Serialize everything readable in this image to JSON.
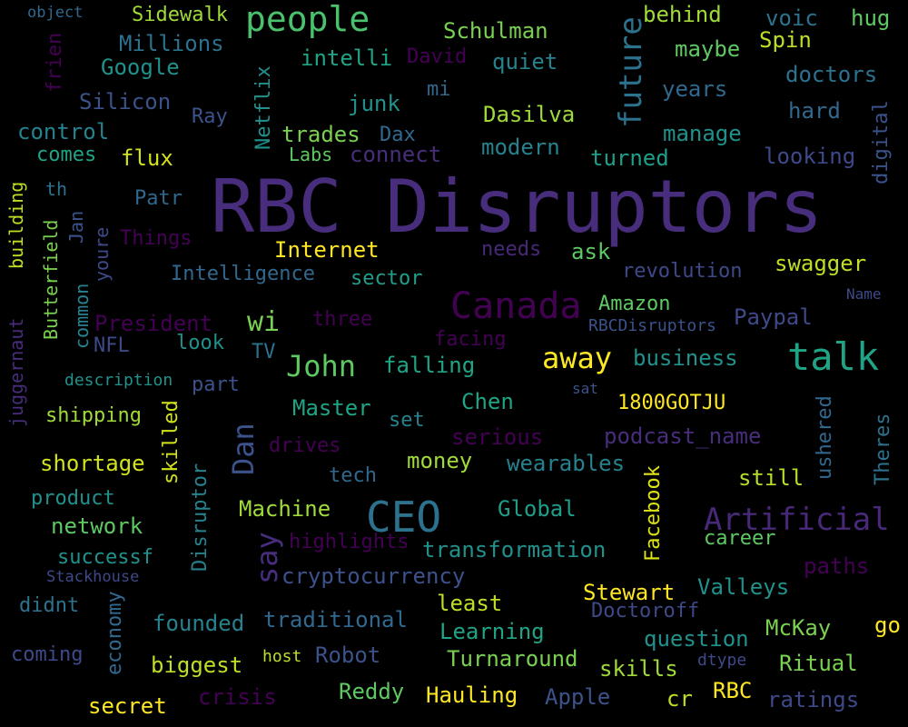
{
  "background": "#000000",
  "words": [
    {
      "text": "RBC Disruptors",
      "color": "#472d7b"
    },
    {
      "text": "people",
      "color": "#4ac16d"
    },
    {
      "text": "CEO",
      "color": "#2c728e"
    },
    {
      "text": "talk",
      "color": "#20a486"
    },
    {
      "text": "Canada",
      "color": "#440154"
    },
    {
      "text": "Artificial",
      "color": "#482878"
    },
    {
      "text": "future",
      "color": "#2c728e"
    },
    {
      "text": "away",
      "color": "#fde725"
    },
    {
      "text": "John",
      "color": "#5ec962"
    },
    {
      "text": "Dan",
      "color": "#3b528b"
    },
    {
      "text": "say",
      "color": "#472d7b"
    },
    {
      "text": "wi",
      "color": "#7ad151"
    },
    {
      "text": "object",
      "color": "#31688e"
    },
    {
      "text": "Sidewalk",
      "color": "#a0da39"
    },
    {
      "text": "behind",
      "color": "#a0da39"
    },
    {
      "text": "voic",
      "color": "#2c728e"
    },
    {
      "text": "hug",
      "color": "#5ec962"
    },
    {
      "text": "Millions",
      "color": "#2c728e"
    },
    {
      "text": "Google",
      "color": "#21918c"
    },
    {
      "text": "intelli",
      "color": "#20a486"
    },
    {
      "text": "David",
      "color": "#440154"
    },
    {
      "text": "Schulman",
      "color": "#7ad151"
    },
    {
      "text": "maybe",
      "color": "#5ec962"
    },
    {
      "text": "Spin",
      "color": "#bddf26"
    },
    {
      "text": "quiet",
      "color": "#26828e"
    },
    {
      "text": "doctors",
      "color": "#2c728e"
    },
    {
      "text": "frien",
      "color": "#440154"
    },
    {
      "text": "Silicon",
      "color": "#3b528b"
    },
    {
      "text": "mi",
      "color": "#31688e"
    },
    {
      "text": "years",
      "color": "#31688e"
    },
    {
      "text": "Ray",
      "color": "#3b528b"
    },
    {
      "text": "junk",
      "color": "#21918c"
    },
    {
      "text": "hard",
      "color": "#31688e"
    },
    {
      "text": "Netflix",
      "color": "#21918c"
    },
    {
      "text": "control",
      "color": "#26828e"
    },
    {
      "text": "trades",
      "color": "#7ad151"
    },
    {
      "text": "Dax",
      "color": "#31688e"
    },
    {
      "text": "Dasilva",
      "color": "#a0da39"
    },
    {
      "text": "manage",
      "color": "#21918c"
    },
    {
      "text": "digital",
      "color": "#3b528b"
    },
    {
      "text": "comes",
      "color": "#20a486"
    },
    {
      "text": "flux",
      "color": "#d2e21b"
    },
    {
      "text": "Labs",
      "color": "#5ec962"
    },
    {
      "text": "connect",
      "color": "#472d7b"
    },
    {
      "text": "modern",
      "color": "#26828e"
    },
    {
      "text": "turned",
      "color": "#1f9e89"
    },
    {
      "text": "looking",
      "color": "#3e4989"
    },
    {
      "text": "th",
      "color": "#2c728e"
    },
    {
      "text": "building",
      "color": "#bddf26"
    },
    {
      "text": "Patr",
      "color": "#31688e"
    },
    {
      "text": "Jan",
      "color": "#3b528b"
    },
    {
      "text": "Butterfield",
      "color": "#7ad151"
    },
    {
      "text": "Things",
      "color": "#440154"
    },
    {
      "text": "youre",
      "color": "#3e4989"
    },
    {
      "text": "Internet",
      "color": "#fde725"
    },
    {
      "text": "needs",
      "color": "#482878"
    },
    {
      "text": "ask",
      "color": "#5ec962"
    },
    {
      "text": "swagger",
      "color": "#bddf26"
    },
    {
      "text": "Intelligence",
      "color": "#31688e"
    },
    {
      "text": "sector",
      "color": "#1f9e89"
    },
    {
      "text": "revolution",
      "color": "#3e4989"
    },
    {
      "text": "Name",
      "color": "#3e4989"
    },
    {
      "text": "juggernaut",
      "color": "#472d7b"
    },
    {
      "text": "common",
      "color": "#26828e"
    },
    {
      "text": "President",
      "color": "#440154"
    },
    {
      "text": "three",
      "color": "#440154"
    },
    {
      "text": "Amazon",
      "color": "#5ec962"
    },
    {
      "text": "Paypal",
      "color": "#3e4989"
    },
    {
      "text": "RBCDisruptors",
      "color": "#3b528b"
    },
    {
      "text": "NFL",
      "color": "#3e4989"
    },
    {
      "text": "look",
      "color": "#21918c"
    },
    {
      "text": "TV",
      "color": "#2c728e"
    },
    {
      "text": "facing",
      "color": "#440154"
    },
    {
      "text": "falling",
      "color": "#20a486"
    },
    {
      "text": "business",
      "color": "#21918c"
    },
    {
      "text": "description",
      "color": "#21918c"
    },
    {
      "text": "part",
      "color": "#3b528b"
    },
    {
      "text": "sat",
      "color": "#3b528b"
    },
    {
      "text": "Theres",
      "color": "#2c728e"
    },
    {
      "text": "ushered",
      "color": "#31688e"
    },
    {
      "text": "Master",
      "color": "#20a486"
    },
    {
      "text": "Chen",
      "color": "#20a486"
    },
    {
      "text": "1800GOTJU",
      "color": "#fde725"
    },
    {
      "text": "shipping",
      "color": "#a0da39"
    },
    {
      "text": "skilled",
      "color": "#d2e21b"
    },
    {
      "text": "set",
      "color": "#26828e"
    },
    {
      "text": "serious",
      "color": "#440154"
    },
    {
      "text": "podcast_name",
      "color": "#472d7b"
    },
    {
      "text": "drives",
      "color": "#440154"
    },
    {
      "text": "shortage",
      "color": "#d2e21b"
    },
    {
      "text": "tech",
      "color": "#31688e"
    },
    {
      "text": "money",
      "color": "#a0da39"
    },
    {
      "text": "wearables",
      "color": "#26828e"
    },
    {
      "text": "still",
      "color": "#b5de2b"
    },
    {
      "text": "Facebook",
      "color": "#dde318"
    },
    {
      "text": "product",
      "color": "#21918c"
    },
    {
      "text": "Disruptor",
      "color": "#26828e"
    },
    {
      "text": "Machine",
      "color": "#a0da39"
    },
    {
      "text": "Global",
      "color": "#1f9e89"
    },
    {
      "text": "network",
      "color": "#5ec962"
    },
    {
      "text": "career",
      "color": "#5ec962"
    },
    {
      "text": "successf",
      "color": "#21918c"
    },
    {
      "text": "highlights",
      "color": "#440154"
    },
    {
      "text": "transformation",
      "color": "#21918c"
    },
    {
      "text": "paths",
      "color": "#440154"
    },
    {
      "text": "Stackhouse",
      "color": "#3e4989"
    },
    {
      "text": "cryptocurrency",
      "color": "#3b528b"
    },
    {
      "text": "Stewart",
      "color": "#fde725"
    },
    {
      "text": "Valleys",
      "color": "#21918c"
    },
    {
      "text": "didnt",
      "color": "#2c728e"
    },
    {
      "text": "economy",
      "color": "#31688e"
    },
    {
      "text": "least",
      "color": "#bddf26"
    },
    {
      "text": "Doctoroff",
      "color": "#3e4989"
    },
    {
      "text": "founded",
      "color": "#26828e"
    },
    {
      "text": "traditional",
      "color": "#31688e"
    },
    {
      "text": "question",
      "color": "#21918c"
    },
    {
      "text": "McKay",
      "color": "#7ad151"
    },
    {
      "text": "go",
      "color": "#fde725"
    },
    {
      "text": "Learning",
      "color": "#20a486"
    },
    {
      "text": "coming",
      "color": "#3e4989"
    },
    {
      "text": "host",
      "color": "#bddf26"
    },
    {
      "text": "Robot",
      "color": "#3b528b"
    },
    {
      "text": "dtype",
      "color": "#3e4989"
    },
    {
      "text": "Turnaround",
      "color": "#7ad151"
    },
    {
      "text": "biggest",
      "color": "#bddf26"
    },
    {
      "text": "skills",
      "color": "#a0da39"
    },
    {
      "text": "Ritual",
      "color": "#7ad151"
    },
    {
      "text": "Reddy",
      "color": "#5ec962"
    },
    {
      "text": "Hauling",
      "color": "#fde725"
    },
    {
      "text": "Apple",
      "color": "#3b528b"
    },
    {
      "text": "cr",
      "color": "#bddf26"
    },
    {
      "text": "RBC",
      "color": "#fde725"
    },
    {
      "text": "ratings",
      "color": "#3e4989"
    },
    {
      "text": "secret",
      "color": "#fde725"
    },
    {
      "text": "crisis",
      "color": "#440154"
    }
  ]
}
